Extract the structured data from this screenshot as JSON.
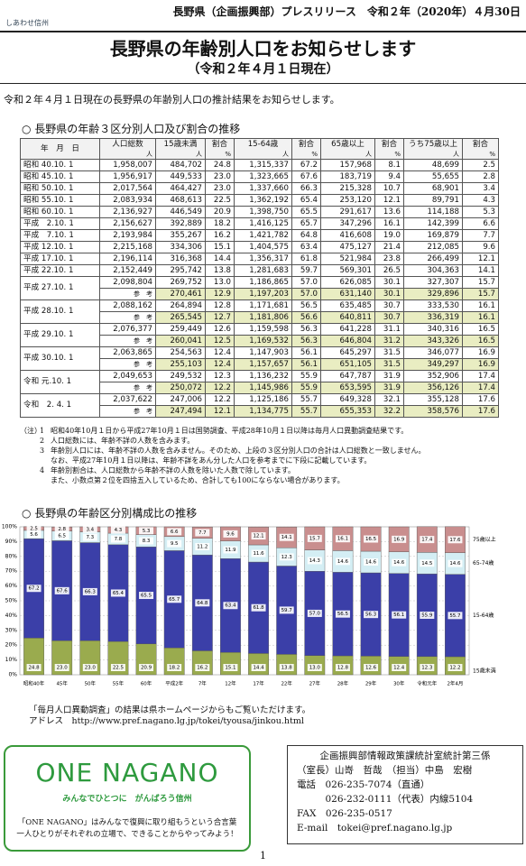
{
  "header": {
    "logo": "しあわせ信州",
    "release": "長野県（企画振興部）プレスリリース　令和２年（2020年）４月30日"
  },
  "title": "長野県の年齢別人口をお知らせします",
  "subtitle": "（令和２年４月１日現在）",
  "intro": "令和２年４月１日現在の長野県の年齢別人口の推計結果をお知らせします。",
  "section1": "○ 長野県の年齢３区分別人口及び割合の推移",
  "table": {
    "headers": [
      "年　月　日",
      "人口総数",
      "15歳未満",
      "割合",
      "15-64歳",
      "割合",
      "65歳以上",
      "割合",
      "うち75歳以上",
      "割合"
    ],
    "units": [
      "人",
      "人",
      "%",
      "人",
      "%",
      "人",
      "%",
      "人",
      "%"
    ],
    "reference_label": "参　考",
    "rows": [
      {
        "date": "昭和 40.10. 1",
        "values": [
          "1,958,007",
          "484,702",
          "24.8",
          "1,315,337",
          "67.2",
          "157,968",
          "8.1",
          "48,699",
          "2.5"
        ]
      },
      {
        "date": "昭和 45.10. 1",
        "values": [
          "1,956,917",
          "449,533",
          "23.0",
          "1,323,665",
          "67.6",
          "183,719",
          "9.4",
          "55,655",
          "2.8"
        ]
      },
      {
        "date": "昭和 50.10. 1",
        "values": [
          "2,017,564",
          "464,427",
          "23.0",
          "1,337,660",
          "66.3",
          "215,328",
          "10.7",
          "68,901",
          "3.4"
        ]
      },
      {
        "date": "昭和 55.10. 1",
        "values": [
          "2,083,934",
          "468,613",
          "22.5",
          "1,362,192",
          "65.4",
          "253,120",
          "12.1",
          "89,791",
          "4.3"
        ]
      },
      {
        "date": "昭和 60.10. 1",
        "values": [
          "2,136,927",
          "446,549",
          "20.9",
          "1,398,750",
          "65.5",
          "291,617",
          "13.6",
          "114,188",
          "5.3"
        ]
      },
      {
        "date": "平成　2.10. 1",
        "values": [
          "2,156,627",
          "392,889",
          "18.2",
          "1,416,125",
          "65.7",
          "347,296",
          "16.1",
          "142,399",
          "6.6"
        ]
      },
      {
        "date": "平成　7.10. 1",
        "values": [
          "2,193,984",
          "355,267",
          "16.2",
          "1,421,782",
          "64.8",
          "416,608",
          "19.0",
          "169,879",
          "7.7"
        ]
      },
      {
        "date": "平成 12.10. 1",
        "values": [
          "2,215,168",
          "334,306",
          "15.1",
          "1,404,575",
          "63.4",
          "475,127",
          "21.4",
          "212,085",
          "9.6"
        ]
      },
      {
        "date": "平成 17.10. 1",
        "values": [
          "2,196,114",
          "316,368",
          "14.4",
          "1,356,317",
          "61.8",
          "521,984",
          "23.8",
          "266,499",
          "12.1"
        ]
      },
      {
        "date": "平成 22.10. 1",
        "values": [
          "2,152,449",
          "295,742",
          "13.8",
          "1,281,683",
          "59.7",
          "569,301",
          "26.5",
          "304,363",
          "14.1"
        ]
      },
      {
        "date": "平成 27.10. 1",
        "values": [
          "2,098,804",
          "269,752",
          "13.0",
          "1,186,865",
          "57.0",
          "626,085",
          "30.1",
          "327,307",
          "15.7"
        ],
        "reference": [
          "270,461",
          "12.9",
          "1,197,203",
          "57.0",
          "631,140",
          "30.1",
          "329,896",
          "15.7"
        ]
      },
      {
        "date": "平成 28.10. 1",
        "values": [
          "2,088,162",
          "264,894",
          "12.8",
          "1,171,681",
          "56.5",
          "635,485",
          "30.7",
          "333,530",
          "16.1"
        ],
        "reference": [
          "265,545",
          "12.7",
          "1,181,806",
          "56.6",
          "640,811",
          "30.7",
          "336,319",
          "16.1"
        ]
      },
      {
        "date": "平成 29.10. 1",
        "values": [
          "2,076,377",
          "259,449",
          "12.6",
          "1,159,598",
          "56.3",
          "641,228",
          "31.1",
          "340,316",
          "16.5"
        ],
        "reference": [
          "260,041",
          "12.5",
          "1,169,532",
          "56.3",
          "646,804",
          "31.2",
          "343,326",
          "16.5"
        ]
      },
      {
        "date": "平成 30.10. 1",
        "values": [
          "2,063,865",
          "254,563",
          "12.4",
          "1,147,903",
          "56.1",
          "645,297",
          "31.5",
          "346,077",
          "16.9"
        ],
        "reference": [
          "255,103",
          "12.4",
          "1,157,657",
          "56.1",
          "651,105",
          "31.5",
          "349,297",
          "16.9"
        ]
      },
      {
        "date": "令和 元.10. 1",
        "values": [
          "2,049,653",
          "249,532",
          "12.3",
          "1,136,232",
          "55.9",
          "647,787",
          "31.9",
          "352,906",
          "17.4"
        ],
        "reference": [
          "250,072",
          "12.2",
          "1,145,986",
          "55.9",
          "653,595",
          "31.9",
          "356,126",
          "17.4"
        ]
      },
      {
        "date": "令和　2. 4. 1",
        "values": [
          "2,037,622",
          "247,006",
          "12.2",
          "1,125,186",
          "55.7",
          "649,328",
          "32.1",
          "355,128",
          "17.6"
        ],
        "reference": [
          "247,494",
          "12.1",
          "1,134,775",
          "55.7",
          "655,353",
          "32.2",
          "358,576",
          "17.6"
        ]
      }
    ]
  },
  "notes": {
    "label": "（注）",
    "items": [
      {
        "number": "1",
        "lines": [
          "昭和40年10月１日から平成27年10月１日は国勢調査、平成28年10月１日以降は毎月人口異動調査結果です。"
        ]
      },
      {
        "number": "2",
        "lines": [
          "人口総数には、年齢不詳の人数を含みます。"
        ]
      },
      {
        "number": "3",
        "lines": [
          "年齢別人口には、年齢不詳の人数を含みません。そのため、上段の３区分別人口の合計は人口総数と一致しません。",
          "なお、平成27年10月１日以降は、年齢不詳をあん分した人口を参考までに下段に記載しています。"
        ]
      },
      {
        "number": "4",
        "lines": [
          "年齢別割合は、人口総数から年齢不詳の人数を除いた人数で除しています。",
          "また、小数点第２位を四捨五入しているため、合計しても100にならない場合があります。"
        ]
      }
    ]
  },
  "section2": "○ 長野県の年齢区分別構成比の推移",
  "chart_data": {
    "type": "bar",
    "stacked": true,
    "categories": [
      "昭和40年",
      "45年",
      "50年",
      "55年",
      "60年",
      "平成2年",
      "7年",
      "12年",
      "17年",
      "22年",
      "27年",
      "28年",
      "29年",
      "30年",
      "令和元年",
      "2年4月"
    ],
    "series": [
      {
        "name": "15歳未満",
        "color": "#9aab4e",
        "values": [
          24.8,
          23.0,
          23.0,
          22.5,
          20.9,
          18.2,
          16.2,
          15.1,
          14.4,
          13.8,
          13.0,
          12.8,
          12.6,
          12.4,
          12.3,
          12.2
        ],
        "value_labels": [
          "24.8",
          "23.0",
          "23.0",
          "22.5",
          "20.9",
          "18.2",
          "16.2",
          "15.1",
          "14.4",
          "13.8",
          "13.0",
          "12.8",
          "12.6",
          "12.4",
          "12.3",
          "12.2"
        ]
      },
      {
        "name": "15-64歳",
        "color": "#3b3fa8",
        "values": [
          67.2,
          67.6,
          66.3,
          65.4,
          65.5,
          65.7,
          64.8,
          63.4,
          61.8,
          59.7,
          57.0,
          56.5,
          56.3,
          56.1,
          55.9,
          55.7
        ],
        "value_labels": [
          "67.2",
          "67.6",
          "66.3",
          "65.4",
          "65.5",
          "65.7",
          "64.8",
          "63.4",
          "61.8",
          "59.7",
          "57.0",
          "56.5",
          "56.3",
          "56.1",
          "55.9",
          "55.7"
        ]
      },
      {
        "name": "65-74歳",
        "color": "#d4eef4",
        "values": [
          5.6,
          6.5,
          7.3,
          7.8,
          8.3,
          9.5,
          11.2,
          11.9,
          11.6,
          12.3,
          14.3,
          14.6,
          14.6,
          14.6,
          14.5,
          14.6
        ]
      },
      {
        "name": "75歳以上",
        "color": "#c98e8e",
        "values": [
          2.5,
          2.8,
          3.4,
          4.3,
          5.3,
          6.6,
          7.7,
          9.6,
          12.1,
          14.1,
          15.7,
          16.1,
          16.5,
          16.9,
          17.4,
          17.6
        ]
      }
    ],
    "ylim": [
      0,
      100
    ],
    "yticks": [
      {
        "value": 0,
        "label": "0%"
      },
      {
        "value": 10,
        "label": "10%"
      },
      {
        "value": 20,
        "label": "20%"
      },
      {
        "value": 30,
        "label": "30%"
      },
      {
        "value": 40,
        "label": "40%"
      },
      {
        "value": 50,
        "label": "50%"
      },
      {
        "value": 60,
        "label": "60%"
      },
      {
        "value": 70,
        "label": "70%"
      },
      {
        "value": 80,
        "label": "80%"
      },
      {
        "value": 90,
        "label": "90%"
      },
      {
        "value": 100,
        "label": "100%"
      }
    ],
    "grid": true
  },
  "links": {
    "text": "「毎月人口異動調査」の結果は県ホームページからもご覧いただけます。",
    "address": "アドレス　http://www.pref.nagano.lg.jp/tokei/tyousa/jinkou.html"
  },
  "campaign": {
    "logo": "ONE NAGANO",
    "slogan": "みんなでひとつに　がんばろう信州",
    "lines": [
      "「ONE NAGANO」はみんなで復興に取り組もうという合言葉",
      "一人ひとりがそれぞれの立場で、できることからやってみよう！"
    ]
  },
  "contact": [
    "企画振興部情報政策課統計室統計第三係",
    "（室長）山嵜　哲哉　（担当）中島　宏樹",
    "電話　026-235-7074（直通）",
    "　　　026-232-0111（代表）内線5104",
    "FAX　026-235-0517",
    "E-mail　tokei@pref.nagano.lg.jp"
  ],
  "page_number": "1"
}
